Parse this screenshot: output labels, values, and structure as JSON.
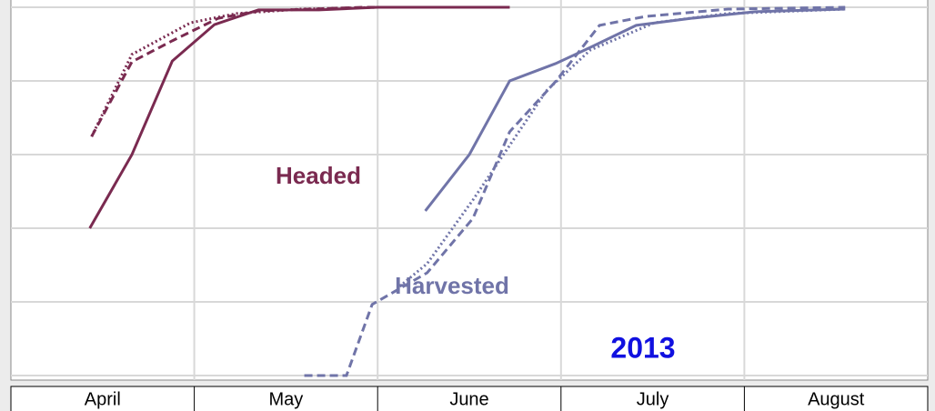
{
  "chart_data": {
    "type": "line",
    "categories": [
      "April",
      "May",
      "June",
      "July",
      "August"
    ],
    "xlim": [
      0,
      5
    ],
    "ylim": [
      0,
      100
    ],
    "yticks": [
      0,
      20,
      40,
      60,
      80,
      100
    ],
    "grid": true,
    "series": [
      {
        "color": "#7a2a50",
        "style": "solid",
        "x": [
          0.43,
          0.66,
          0.88,
          1.11,
          1.35,
          1.68,
          2.0,
          2.72
        ],
        "values": [
          40,
          60,
          85.4,
          95.3,
          99.3,
          99.3,
          100,
          100
        ]
      },
      {
        "color": "#7a2a50",
        "style": "dashed",
        "x": [
          0.44,
          0.66,
          0.88,
          1.13,
          1.35,
          1.92,
          2.72
        ],
        "values": [
          64.9,
          85.2,
          90.9,
          97.0,
          99.0,
          100,
          100
        ]
      },
      {
        "color": "#7a2a50",
        "style": "dotted",
        "x": [
          0.44,
          0.66,
          0.98,
          1.23,
          1.58,
          2.0
        ],
        "values": [
          64.9,
          87.2,
          95.8,
          98.3,
          99.5,
          100
        ]
      },
      {
        "color": "#7074a8",
        "style": "solid",
        "x": [
          2.26,
          2.5,
          2.72,
          2.97,
          3.16,
          3.41,
          3.71,
          4.06,
          4.55
        ],
        "values": [
          44.7,
          60,
          80,
          84.7,
          89.1,
          95.1,
          97.0,
          98.8,
          99.5
        ]
      },
      {
        "color": "#7074a8",
        "style": "dashed",
        "x": [
          1.6,
          1.83,
          1.97,
          2.27,
          2.52,
          2.72,
          2.97,
          3.21,
          3.46,
          3.91,
          4.55
        ],
        "values": [
          0,
          0,
          19.3,
          27.9,
          42.7,
          66.2,
          79.8,
          95.1,
          97.5,
          99.5,
          100
        ]
      },
      {
        "color": "#7074a8",
        "style": "dotted",
        "x": [
          2.12,
          2.27,
          2.52,
          2.72,
          2.92,
          3.16,
          3.51,
          3.91,
          4.55
        ],
        "values": [
          24.2,
          30.4,
          47.7,
          62.5,
          77.3,
          88.4,
          95.8,
          98.3,
          99.5
        ]
      }
    ],
    "annotations": [
      {
        "text": "Headed",
        "color": "#7a2a50"
      },
      {
        "text": "Harvested",
        "color": "#7074a8"
      },
      {
        "text": "2013",
        "color": "#1010e0"
      }
    ]
  }
}
